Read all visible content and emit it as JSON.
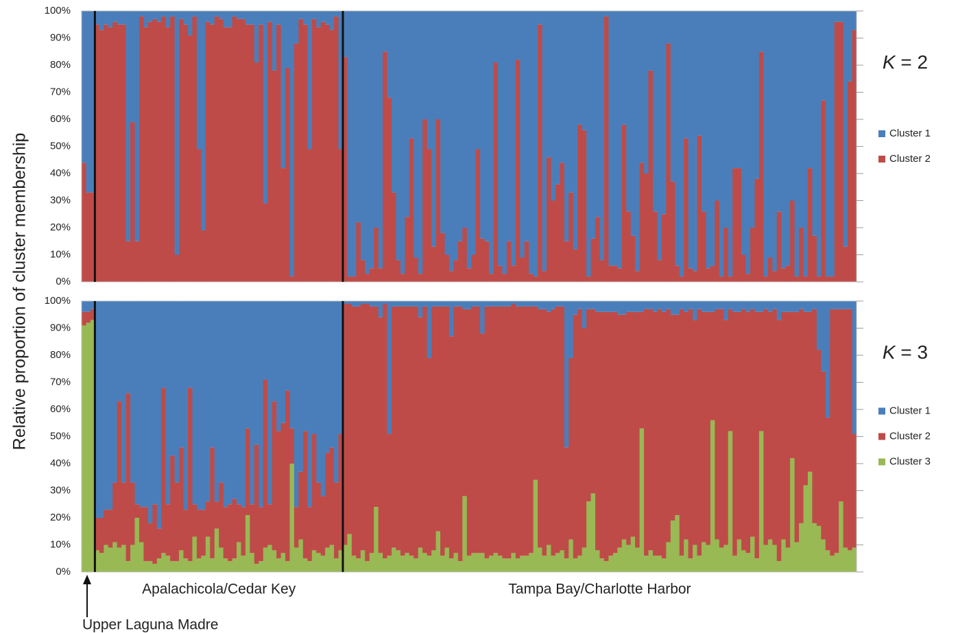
{
  "y_label": "Relative proportion of cluster membership",
  "groups": [
    {
      "label": "Upper Laguna Madre",
      "size": 3
    },
    {
      "label": "Apalachicola/Cedar Key",
      "size": 56
    },
    {
      "label": "Tampa Bay/Charlotte Harbor",
      "size": 116
    }
  ],
  "chart_data": [
    {
      "type": "stacked-bar",
      "title": "K = 2",
      "ylim": [
        0,
        100
      ],
      "yticks": [
        {
          "value": 0,
          "label": "0%"
        },
        {
          "value": 10,
          "label": "10%"
        },
        {
          "value": 20,
          "label": "20%"
        },
        {
          "value": 30,
          "label": "30%"
        },
        {
          "value": 40,
          "label": "40%"
        },
        {
          "value": 50,
          "label": "50%"
        },
        {
          "value": 60,
          "label": "60%"
        },
        {
          "value": 70,
          "label": "70%"
        },
        {
          "value": 80,
          "label": "80%"
        },
        {
          "value": 90,
          "label": "90%"
        },
        {
          "value": 100,
          "label": "100%"
        }
      ],
      "series": [
        {
          "name": "Cluster 1",
          "color": "#4a7ebb",
          "values": [
            56,
            67,
            67,
            5,
            7,
            5,
            6,
            4,
            5,
            5,
            85,
            41,
            85,
            2,
            6,
            4,
            3,
            4,
            2,
            6,
            2,
            90,
            3,
            5,
            9,
            2,
            51,
            81,
            4,
            5,
            2,
            3,
            6,
            6,
            2,
            3,
            3,
            5,
            5,
            19,
            5,
            71,
            4,
            22,
            5,
            58,
            21,
            98,
            12,
            3,
            5,
            51,
            3,
            6,
            4,
            5,
            7,
            2,
            51,
            17,
            98,
            98,
            78,
            92,
            97,
            95,
            80,
            95,
            15,
            32,
            67,
            92,
            97,
            76,
            47,
            91,
            97,
            40,
            51,
            87,
            40,
            82,
            90,
            96,
            92,
            85,
            80,
            95,
            90,
            51,
            84,
            85,
            97,
            19,
            94,
            97,
            85,
            94,
            18,
            91,
            85,
            97,
            98,
            5,
            96,
            54,
            70,
            64,
            56,
            85,
            67,
            88,
            42,
            44,
            98,
            84,
            76,
            92,
            2,
            94,
            94,
            95,
            42,
            74,
            83,
            96,
            56,
            60,
            22,
            74,
            92,
            75,
            12,
            63,
            94,
            98,
            47,
            95,
            96,
            46,
            74,
            95,
            94,
            70,
            98,
            80,
            98,
            58,
            58,
            90,
            97,
            80,
            62,
            15,
            98,
            91,
            96,
            74,
            95,
            94,
            70,
            98,
            80,
            98,
            58,
            83,
            98,
            33,
            98,
            98,
            4,
            4,
            87,
            26,
            7
          ]
        },
        {
          "name": "Cluster 2",
          "color": "#be4b48",
          "values": [
            44,
            33,
            33,
            95,
            93,
            95,
            94,
            96,
            95,
            95,
            15,
            59,
            15,
            98,
            94,
            96,
            97,
            96,
            98,
            94,
            98,
            10,
            97,
            95,
            91,
            98,
            49,
            19,
            96,
            95,
            98,
            97,
            94,
            94,
            98,
            97,
            97,
            95,
            95,
            81,
            95,
            29,
            96,
            78,
            95,
            42,
            79,
            2,
            88,
            97,
            95,
            49,
            97,
            94,
            96,
            95,
            93,
            98,
            49,
            83,
            2,
            2,
            22,
            8,
            3,
            5,
            20,
            5,
            85,
            68,
            33,
            8,
            3,
            24,
            53,
            9,
            3,
            60,
            49,
            13,
            60,
            18,
            10,
            4,
            8,
            15,
            20,
            5,
            10,
            49,
            16,
            15,
            3,
            81,
            6,
            3,
            15,
            6,
            82,
            9,
            15,
            3,
            2,
            95,
            4,
            46,
            30,
            36,
            44,
            15,
            33,
            12,
            58,
            56,
            2,
            16,
            24,
            8,
            98,
            6,
            6,
            5,
            58,
            26,
            17,
            4,
            44,
            40,
            78,
            26,
            8,
            25,
            88,
            37,
            6,
            2,
            53,
            5,
            4,
            54,
            26,
            5,
            6,
            30,
            2,
            20,
            2,
            42,
            42,
            10,
            3,
            20,
            38,
            85,
            2,
            9,
            4,
            26,
            5,
            6,
            30,
            2,
            20,
            2,
            42,
            17,
            2,
            67,
            2,
            2,
            96,
            96,
            13,
            74,
            93
          ]
        }
      ]
    },
    {
      "type": "stacked-bar",
      "title": "K = 3",
      "ylim": [
        0,
        100
      ],
      "yticks": [
        {
          "value": 0,
          "label": "0%"
        },
        {
          "value": 10,
          "label": "10%"
        },
        {
          "value": 20,
          "label": "20%"
        },
        {
          "value": 30,
          "label": "30%"
        },
        {
          "value": 40,
          "label": "40%"
        },
        {
          "value": 50,
          "label": "50%"
        },
        {
          "value": 60,
          "label": "60%"
        },
        {
          "value": 70,
          "label": "70%"
        },
        {
          "value": 80,
          "label": "80%"
        },
        {
          "value": 90,
          "label": "90%"
        },
        {
          "value": 100,
          "label": "100%"
        }
      ],
      "series": [
        {
          "name": "Cluster 1",
          "color": "#4a7ebb",
          "values": [
            4,
            4,
            3,
            80,
            80,
            77,
            77,
            67,
            37,
            67,
            34,
            67,
            75,
            76,
            76,
            82,
            75,
            84,
            32,
            75,
            57,
            67,
            54,
            77,
            32,
            75,
            77,
            77,
            74,
            54,
            74,
            67,
            76,
            75,
            73,
            75,
            76,
            47,
            75,
            53,
            76,
            29,
            75,
            37,
            48,
            45,
            33,
            47,
            76,
            63,
            48,
            76,
            49,
            67,
            72,
            56,
            54,
            67,
            49,
            1,
            1,
            2,
            2,
            1,
            1,
            2,
            2,
            6,
            1,
            49,
            2,
            2,
            2,
            2,
            2,
            2,
            6,
            2,
            21,
            2,
            2,
            2,
            2,
            13,
            2,
            2,
            3,
            3,
            2,
            2,
            12,
            2,
            2,
            2,
            2,
            2,
            2,
            1,
            2,
            2,
            2,
            2,
            2,
            3,
            3,
            4,
            3,
            2,
            2,
            54,
            21,
            5,
            3,
            10,
            3,
            3,
            4,
            4,
            4,
            4,
            4,
            5,
            5,
            4,
            4,
            4,
            4,
            3,
            3,
            4,
            3,
            4,
            3,
            5,
            5,
            3,
            4,
            3,
            7,
            3,
            4,
            4,
            4,
            3,
            3,
            7,
            3,
            4,
            4,
            3,
            4,
            3,
            4,
            4,
            3,
            4,
            3,
            7,
            4,
            4,
            4,
            4,
            3,
            4,
            4,
            3,
            18,
            26,
            43,
            3,
            3,
            3,
            3,
            3,
            49
          ]
        },
        {
          "name": "Cluster 2",
          "color": "#be4b48",
          "values": [
            5,
            4,
            4,
            12,
            13,
            13,
            14,
            22,
            54,
            23,
            62,
            23,
            5,
            13,
            20,
            14,
            22,
            11,
            61,
            19,
            39,
            29,
            38,
            18,
            64,
            12,
            18,
            17,
            13,
            41,
            10,
            24,
            19,
            21,
            22,
            14,
            18,
            32,
            18,
            44,
            20,
            62,
            15,
            55,
            47,
            48,
            63,
            13,
            15,
            25,
            47,
            20,
            43,
            26,
            22,
            35,
            36,
            28,
            43,
            89,
            85,
            92,
            93,
            91,
            95,
            91,
            74,
            87,
            94,
            45,
            89,
            90,
            92,
            91,
            92,
            93,
            85,
            91,
            73,
            90,
            83,
            92,
            89,
            82,
            91,
            94,
            69,
            91,
            91,
            91,
            81,
            93,
            92,
            91,
            92,
            93,
            93,
            92,
            93,
            92,
            92,
            91,
            64,
            88,
            91,
            86,
            91,
            91,
            90,
            41,
            67,
            90,
            91,
            81,
            71,
            68,
            88,
            91,
            92,
            90,
            89,
            86,
            83,
            86,
            83,
            87,
            43,
            91,
            89,
            90,
            91,
            91,
            86,
            76,
            74,
            91,
            84,
            92,
            83,
            91,
            85,
            86,
            40,
            85,
            88,
            83,
            45,
            90,
            84,
            89,
            89,
            84,
            91,
            44,
            87,
            84,
            87,
            89,
            84,
            87,
            54,
            85,
            79,
            64,
            59,
            79,
            65,
            62,
            49,
            91,
            90,
            71,
            88,
            89,
            42
          ]
        },
        {
          "name": "Cluster 3",
          "color": "#98b954",
          "values": [
            91,
            92,
            93,
            8,
            7,
            10,
            9,
            11,
            9,
            10,
            4,
            10,
            20,
            11,
            4,
            4,
            3,
            5,
            7,
            6,
            4,
            4,
            8,
            5,
            4,
            13,
            5,
            6,
            13,
            5,
            16,
            9,
            5,
            4,
            5,
            11,
            6,
            21,
            7,
            3,
            4,
            9,
            10,
            8,
            5,
            7,
            4,
            40,
            9,
            12,
            5,
            4,
            8,
            7,
            6,
            9,
            10,
            5,
            8,
            10,
            14,
            6,
            5,
            8,
            4,
            7,
            24,
            7,
            5,
            6,
            9,
            8,
            6,
            7,
            6,
            5,
            9,
            7,
            6,
            8,
            15,
            6,
            9,
            5,
            7,
            4,
            28,
            6,
            7,
            7,
            7,
            5,
            6,
            7,
            6,
            5,
            5,
            7,
            5,
            6,
            6,
            7,
            34,
            9,
            6,
            10,
            6,
            7,
            8,
            5,
            12,
            5,
            6,
            9,
            26,
            29,
            8,
            5,
            4,
            6,
            7,
            9,
            12,
            10,
            13,
            9,
            53,
            6,
            8,
            6,
            6,
            5,
            11,
            19,
            21,
            6,
            12,
            5,
            10,
            6,
            11,
            10,
            56,
            12,
            9,
            10,
            52,
            6,
            12,
            8,
            7,
            13,
            5,
            52,
            10,
            12,
            10,
            4,
            12,
            9,
            42,
            11,
            18,
            32,
            37,
            18,
            17,
            12,
            8,
            6,
            7,
            26,
            9,
            8,
            9
          ]
        }
      ]
    }
  ]
}
